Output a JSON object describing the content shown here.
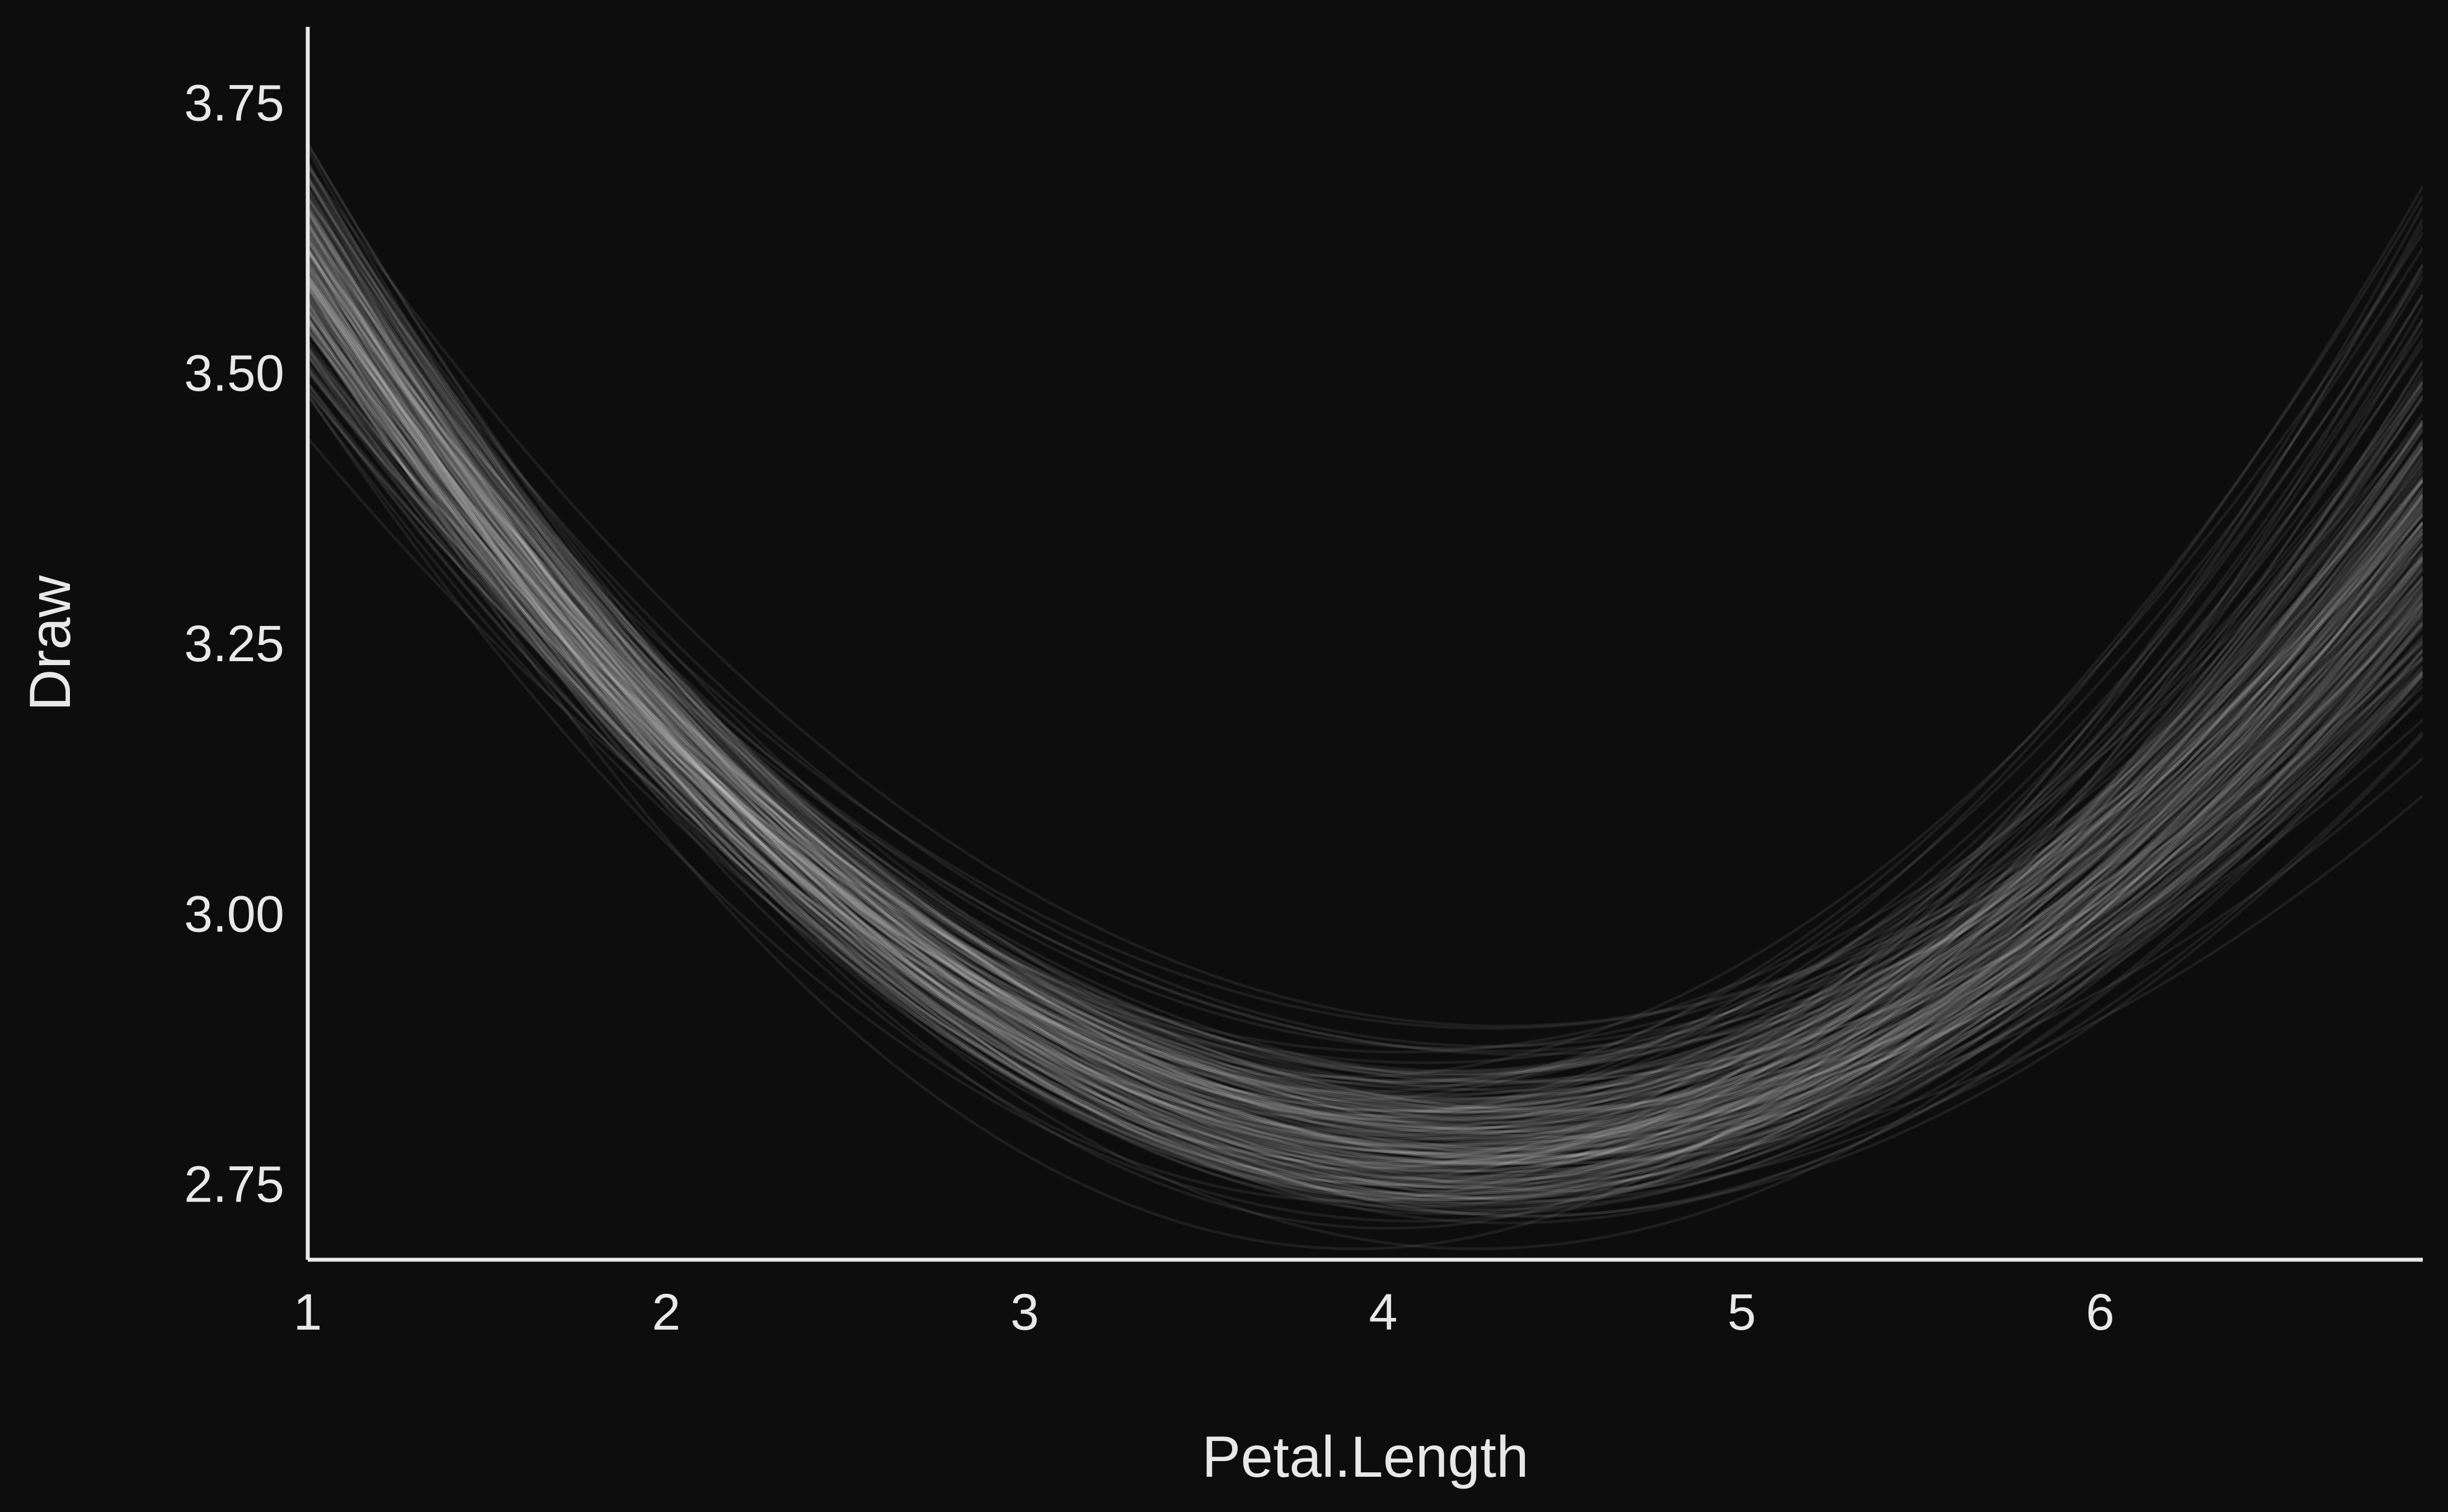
{
  "chart_data": {
    "type": "line",
    "xlabel": "Petal.Length",
    "ylabel": "Draw",
    "xlim": [
      1,
      6.9
    ],
    "ylim": [
      2.68,
      3.82
    ],
    "xticks": [
      1,
      2,
      3,
      4,
      5,
      6
    ],
    "yticks": [
      2.75,
      3.0,
      3.25,
      3.5,
      3.75
    ],
    "xtick_labels": [
      "1",
      "2",
      "3",
      "4",
      "5",
      "6"
    ],
    "ytick_labels": [
      "2.75",
      "3.00",
      "3.25",
      "3.50",
      "3.75"
    ],
    "grid": false,
    "legend": "none",
    "draw_count": 200,
    "series_summary": {
      "description_of_form": "quadratic posterior draws y = a + b*x + c*x^2",
      "mean_curve": [
        {
          "x": 1.0,
          "y": 3.6
        },
        {
          "x": 2.0,
          "y": 3.16
        },
        {
          "x": 3.0,
          "y": 2.89
        },
        {
          "x": 4.0,
          "y": 2.79
        },
        {
          "x": 4.2,
          "y": 2.785
        },
        {
          "x": 5.0,
          "y": 2.85
        },
        {
          "x": 6.0,
          "y": 3.08
        },
        {
          "x": 6.9,
          "y": 3.4
        }
      ],
      "y_at_x1_range": [
        3.44,
        3.8
      ],
      "y_at_x6.9_range": [
        3.05,
        3.82
      ],
      "vertex_x_range": [
        3.9,
        4.6
      ],
      "vertex_y_range": [
        2.69,
        2.91
      ]
    },
    "colors": {
      "background": "#0d0d0d",
      "line": "#ffffff",
      "axis": "#e8e8e8",
      "text": "#e8e8e8"
    }
  }
}
